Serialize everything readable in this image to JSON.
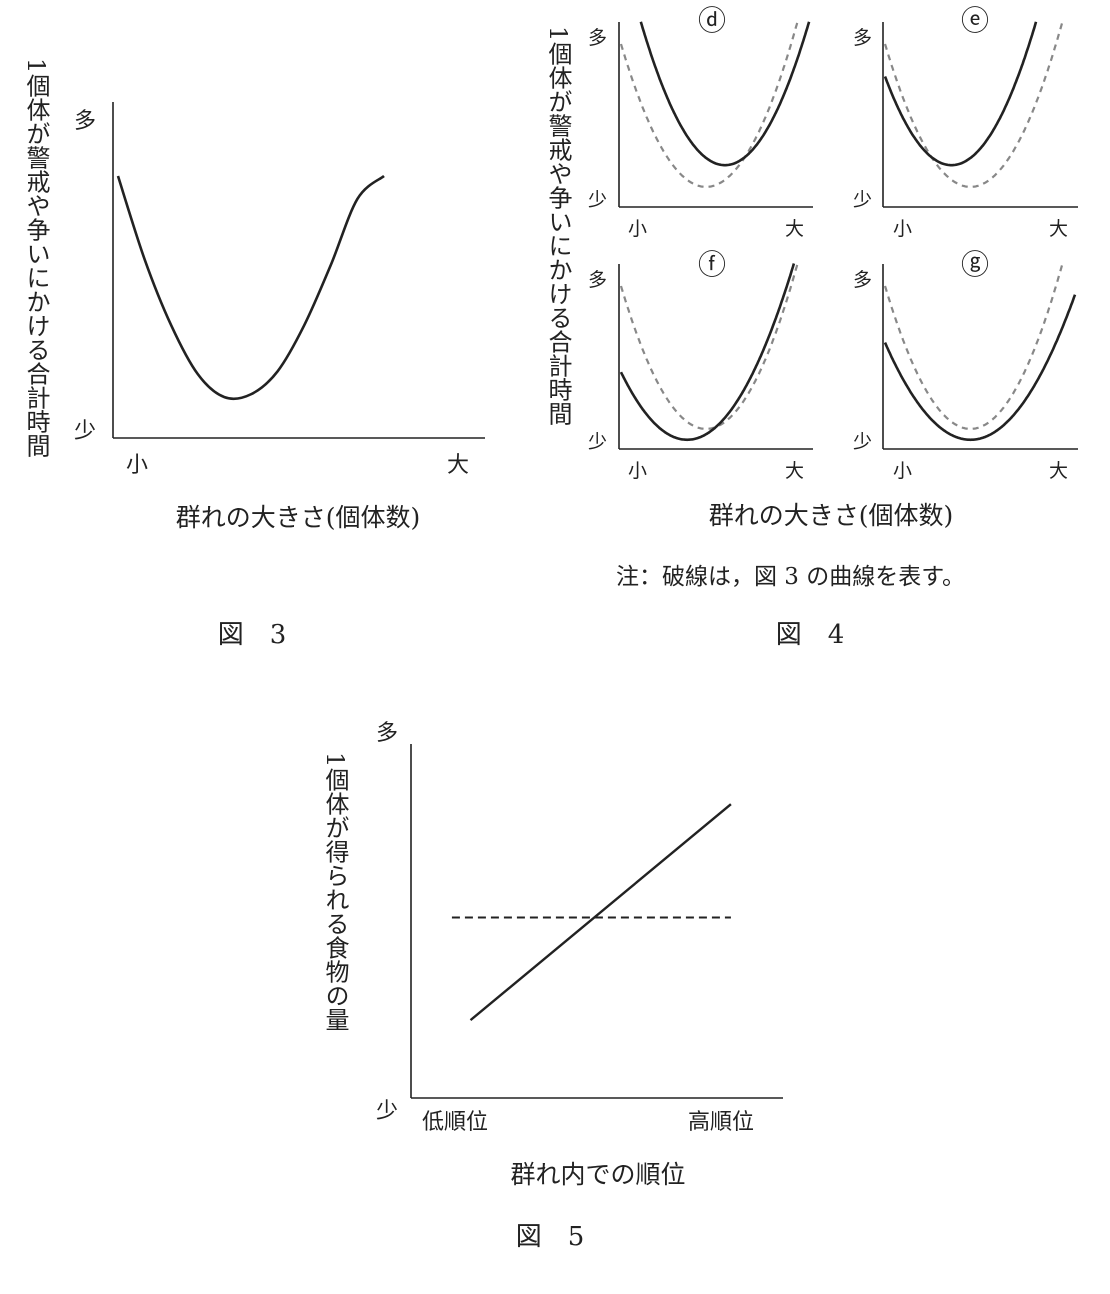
{
  "charts": {
    "fig3": {
      "caption": "図　3",
      "ylabel": "1個体が警戒や争いにかける合計時間",
      "xlabel": "群れの大きさ(個体数)",
      "y_hi": "多",
      "y_lo": "少",
      "x_lo": "小",
      "x_hi": "大"
    },
    "fig4": {
      "caption": "図　4",
      "ylabel": "1個体が警戒や争いにかける合計時間",
      "xlabel": "群れの大きさ(個体数)",
      "note": "注：破線は，図 3 の曲線を表す。",
      "y_hi": "多",
      "y_lo": "少",
      "x_lo": "小",
      "x_hi": "大",
      "panels": [
        {
          "id": "ⓓ"
        },
        {
          "id": "ⓔ"
        },
        {
          "id": "ⓕ"
        },
        {
          "id": "ⓖ"
        }
      ]
    },
    "fig5": {
      "caption": "図　5",
      "ylabel": "1個体が得られる食物の量",
      "xlabel": "群れ内での順位",
      "y_hi": "多",
      "y_lo": "少",
      "x_lo": "低順位",
      "x_hi": "高順位"
    }
  },
  "chart_data": [
    {
      "type": "line",
      "figure": "fig3",
      "x": [
        0.0,
        0.1,
        0.2,
        0.3,
        0.4,
        0.5,
        0.6,
        0.7,
        0.8,
        0.9,
        1.0
      ],
      "series": [
        {
          "style": "solid",
          "values": [
            0.78,
            0.49,
            0.26,
            0.09,
            0.01,
            0.02,
            0.1,
            0.26,
            0.47,
            0.7,
            0.78
          ]
        }
      ],
      "xlim": [
        0,
        1
      ],
      "ylim": [
        0,
        1
      ]
    },
    {
      "type": "line",
      "figure": "fig4",
      "panels": [
        {
          "id": "ⓓ",
          "series": [
            {
              "style": "solid",
              "vertex_x": 0.55,
              "vertex_y": 0.22,
              "k": 4.0
            },
            {
              "style": "dashed",
              "vertex_x": 0.45,
              "vertex_y": 0.1,
              "k": 3.9
            }
          ]
        },
        {
          "id": "ⓔ",
          "series": [
            {
              "style": "solid",
              "vertex_x": 0.35,
              "vertex_y": 0.22,
              "k": 4.0
            },
            {
              "style": "dashed",
              "vertex_x": 0.45,
              "vertex_y": 0.1,
              "k": 3.9
            }
          ]
        },
        {
          "id": "ⓕ",
          "series": [
            {
              "style": "solid",
              "vertex_x": 0.35,
              "vertex_y": 0.04,
              "k": 3.05
            },
            {
              "style": "dashed",
              "vertex_x": 0.45,
              "vertex_y": 0.1,
              "k": 3.9
            }
          ]
        },
        {
          "id": "ⓖ",
          "series": [
            {
              "style": "solid",
              "vertex_x": 0.45,
              "vertex_y": 0.04,
              "k": 2.65
            },
            {
              "style": "dashed",
              "vertex_x": 0.45,
              "vertex_y": 0.1,
              "k": 3.9
            }
          ]
        }
      ],
      "xlim": [
        0,
        1
      ],
      "ylim": [
        0,
        1
      ]
    },
    {
      "type": "line",
      "figure": "fig5",
      "series": [
        {
          "style": "solid",
          "x": [
            0.16,
            0.86
          ],
          "values": [
            0.22,
            0.83
          ]
        },
        {
          "style": "dashed",
          "x": [
            0.11,
            0.86
          ],
          "values": [
            0.51,
            0.51
          ]
        }
      ],
      "xlim": [
        0,
        1
      ],
      "ylim": [
        0,
        1
      ]
    }
  ]
}
